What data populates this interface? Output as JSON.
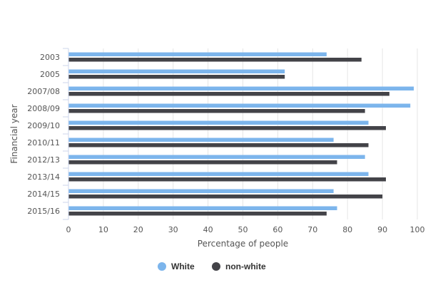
{
  "chart_data": {
    "type": "bar",
    "orientation": "horizontal",
    "categories": [
      "2003",
      "2005",
      "2007/08",
      "2008/09",
      "2009/10",
      "2010/11",
      "2012/13",
      "2013/14",
      "2014/15",
      "2015/16"
    ],
    "series": [
      {
        "name": "White",
        "color": "#7cb5ec",
        "values": [
          74,
          62,
          99,
          98,
          86,
          76,
          85,
          86,
          76,
          77
        ]
      },
      {
        "name": "non-white",
        "color": "#434348",
        "values": [
          84,
          62,
          92,
          85,
          91,
          86,
          77,
          91,
          90,
          74
        ]
      }
    ],
    "xlabel": "Percentage of people",
    "ylabel": "Financial year",
    "xlim": [
      0,
      100
    ],
    "xticks": [
      0,
      10,
      20,
      30,
      40,
      50,
      60,
      70,
      80,
      90,
      100
    ],
    "grid": true,
    "legend": "bottom-center"
  }
}
